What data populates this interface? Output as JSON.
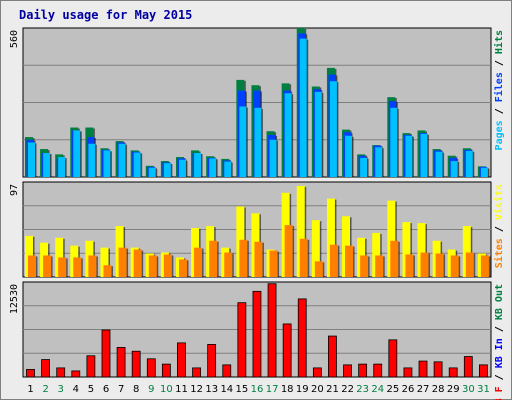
{
  "title": "Daily usage for May 2015",
  "colors": {
    "background": "#ececec",
    "plot": "#c0c0c0",
    "title": "#0000a0",
    "hits": "#008040",
    "files": "#0040ff",
    "pages": "#00c0ff",
    "visits": "#ffff00",
    "sites": "#ff8000",
    "kb_in": "#0000ff",
    "kb_out": "#008040",
    "kb_f": "#ff0000",
    "weekend_label": "#008040",
    "weekday_label": "#000000"
  },
  "chart_data": [
    {
      "type": "bar",
      "panel": "top",
      "ymax_label": "560",
      "ylim": [
        0,
        560
      ],
      "ylabel": [
        {
          "text": "Pages",
          "color": "#00c0ff"
        },
        {
          "text": " / ",
          "color": "#000000"
        },
        {
          "text": "Files",
          "color": "#0040ff"
        },
        {
          "text": " / ",
          "color": "#000000"
        },
        {
          "text": "Hits",
          "color": "#008040"
        }
      ],
      "categories": [
        "1",
        "2",
        "3",
        "4",
        "5",
        "6",
        "7",
        "8",
        "9",
        "10",
        "11",
        "12",
        "13",
        "14",
        "15",
        "16",
        "17",
        "18",
        "19",
        "20",
        "21",
        "22",
        "23",
        "24",
        "25",
        "26",
        "27",
        "28",
        "29",
        "30",
        "31"
      ],
      "weekend_days": [
        "2",
        "3",
        "9",
        "10",
        "16",
        "17",
        "23",
        "24",
        "30",
        "31"
      ],
      "series": [
        {
          "name": "Hits",
          "values": [
            150,
            105,
            85,
            186,
            186,
            108,
            135,
            100,
            42,
            60,
            75,
            100,
            78,
            68,
            365,
            345,
            172,
            352,
            560,
            340,
            410,
            178,
            85,
            120,
            300,
            165,
            175,
            105,
            80,
            108,
            40
          ]
        },
        {
          "name": "Files",
          "values": [
            140,
            90,
            68,
            175,
            150,
            102,
            130,
            95,
            38,
            55,
            70,
            90,
            72,
            62,
            325,
            325,
            158,
            325,
            540,
            330,
            385,
            168,
            80,
            118,
            285,
            158,
            165,
            100,
            72,
            102,
            38
          ]
        },
        {
          "name": "Pages",
          "values": [
            130,
            90,
            75,
            175,
            125,
            100,
            125,
            92,
            35,
            52,
            65,
            90,
            70,
            58,
            265,
            260,
            140,
            315,
            520,
            320,
            360,
            155,
            72,
            112,
            260,
            155,
            162,
            95,
            60,
            98,
            35
          ]
        }
      ]
    },
    {
      "type": "bar",
      "panel": "middle",
      "ymax_label": "97",
      "ylim": [
        0,
        97
      ],
      "ylabel": [
        {
          "text": "Sites",
          "color": "#ff8000"
        },
        {
          "text": " / ",
          "color": "#000000"
        },
        {
          "text": "Visits",
          "color": "#ffff00"
        }
      ],
      "categories": [
        "1",
        "2",
        "3",
        "4",
        "5",
        "6",
        "7",
        "8",
        "9",
        "10",
        "11",
        "12",
        "13",
        "14",
        "15",
        "16",
        "17",
        "18",
        "19",
        "20",
        "21",
        "22",
        "23",
        "24",
        "25",
        "26",
        "27",
        "28",
        "29",
        "30",
        "31"
      ],
      "series": [
        {
          "name": "Visits",
          "values": [
            42,
            35,
            40,
            32,
            37,
            30,
            52,
            30,
            24,
            25,
            20,
            50,
            52,
            30,
            72,
            65,
            28,
            86,
            93,
            58,
            80,
            62,
            40,
            45,
            78,
            56,
            55,
            37,
            28,
            52,
            24
          ]
        },
        {
          "name": "Sites",
          "values": [
            22,
            22,
            20,
            20,
            22,
            12,
            30,
            28,
            22,
            23,
            18,
            30,
            37,
            25,
            38,
            36,
            27,
            53,
            39,
            16,
            33,
            32,
            22,
            22,
            37,
            23,
            25,
            24,
            22,
            25,
            22
          ]
        }
      ]
    },
    {
      "type": "bar",
      "panel": "bottom",
      "ymax_label": "12530",
      "ylim": [
        0,
        12530
      ],
      "ylabel": [
        {
          "text": "KB F",
          "color": "#ff0000"
        },
        {
          "text": " / ",
          "color": "#000000"
        },
        {
          "text": "KB In",
          "color": "#0000ff"
        },
        {
          "text": " / ",
          "color": "#000000"
        },
        {
          "text": "KB Out",
          "color": "#008040"
        }
      ],
      "categories": [
        "1",
        "2",
        "3",
        "4",
        "5",
        "6",
        "7",
        "8",
        "9",
        "10",
        "11",
        "12",
        "13",
        "14",
        "15",
        "16",
        "17",
        "18",
        "19",
        "20",
        "21",
        "22",
        "23",
        "24",
        "25",
        "26",
        "27",
        "28",
        "29",
        "30",
        "31"
      ],
      "series": [
        {
          "name": "KB F",
          "values": [
            1000,
            2300,
            1200,
            800,
            2800,
            6200,
            3900,
            3400,
            2400,
            1700,
            4500,
            1200,
            4300,
            1600,
            9800,
            11300,
            12300,
            7000,
            10300,
            1200,
            5400,
            1600,
            1700,
            1700,
            4900,
            1200,
            2100,
            2000,
            1200,
            2700,
            1600
          ]
        }
      ]
    }
  ]
}
